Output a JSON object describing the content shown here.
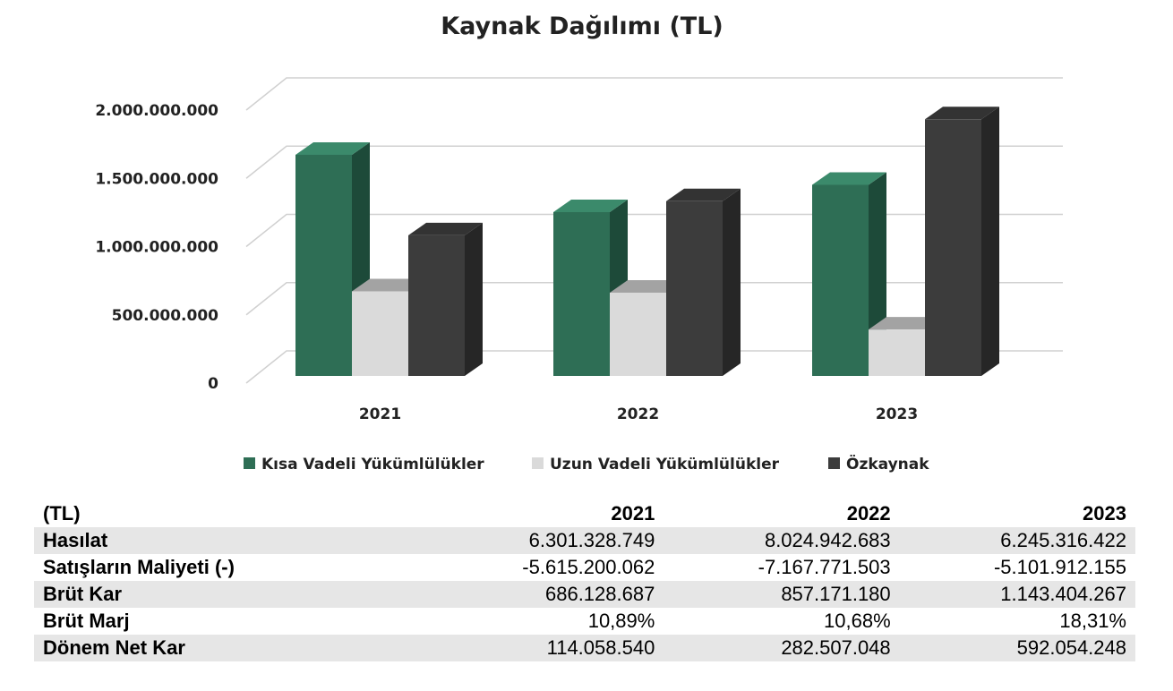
{
  "chart_data": {
    "type": "bar",
    "title": "Kaynak Dağılımı (TL)",
    "categories": [
      "2021",
      "2022",
      "2023"
    ],
    "series": [
      {
        "name": "Kısa Vadeli Yükümlülükler",
        "values": [
          1620000000,
          1200000000,
          1400000000
        ],
        "color": "#2e6e55",
        "side": "#1d4a39",
        "top": "#3b8a6b"
      },
      {
        "name": "Uzun Vadeli Yükümlülükler",
        "values": [
          620000000,
          610000000,
          340000000
        ],
        "color": "#dadada",
        "side": "#bdbdbd",
        "top": "#a3a3a3"
      },
      {
        "name": "Özkaynak",
        "values": [
          1030000000,
          1280000000,
          1880000000
        ],
        "color": "#3c3c3c",
        "side": "#262626",
        "top": "#333333"
      }
    ],
    "yticks": [
      "0",
      "500.000.000",
      "1.000.000.000",
      "1.500.000.000",
      "2.000.000.000"
    ],
    "ylim": [
      0,
      2000000000
    ],
    "grid": true,
    "legend": "bottom"
  },
  "table": {
    "header": {
      "label": "(TL)",
      "years": [
        "2021",
        "2022",
        "2023"
      ]
    },
    "rows": [
      {
        "label": "Hasılat",
        "values": [
          "6.301.328.749",
          "8.024.942.683",
          "6.245.316.422"
        ]
      },
      {
        "label": "Satışların Maliyeti (-)",
        "values": [
          "-5.615.200.062",
          "-7.167.771.503",
          "-5.101.912.155"
        ]
      },
      {
        "label": "Brüt Kar",
        "values": [
          "686.128.687",
          "857.171.180",
          "1.143.404.267"
        ]
      },
      {
        "label": "Brüt Marj",
        "values": [
          "10,89%",
          "10,68%",
          "18,31%"
        ]
      },
      {
        "label": "Dönem Net Kar",
        "values": [
          "114.058.540",
          "282.507.048",
          "592.054.248"
        ]
      }
    ]
  }
}
